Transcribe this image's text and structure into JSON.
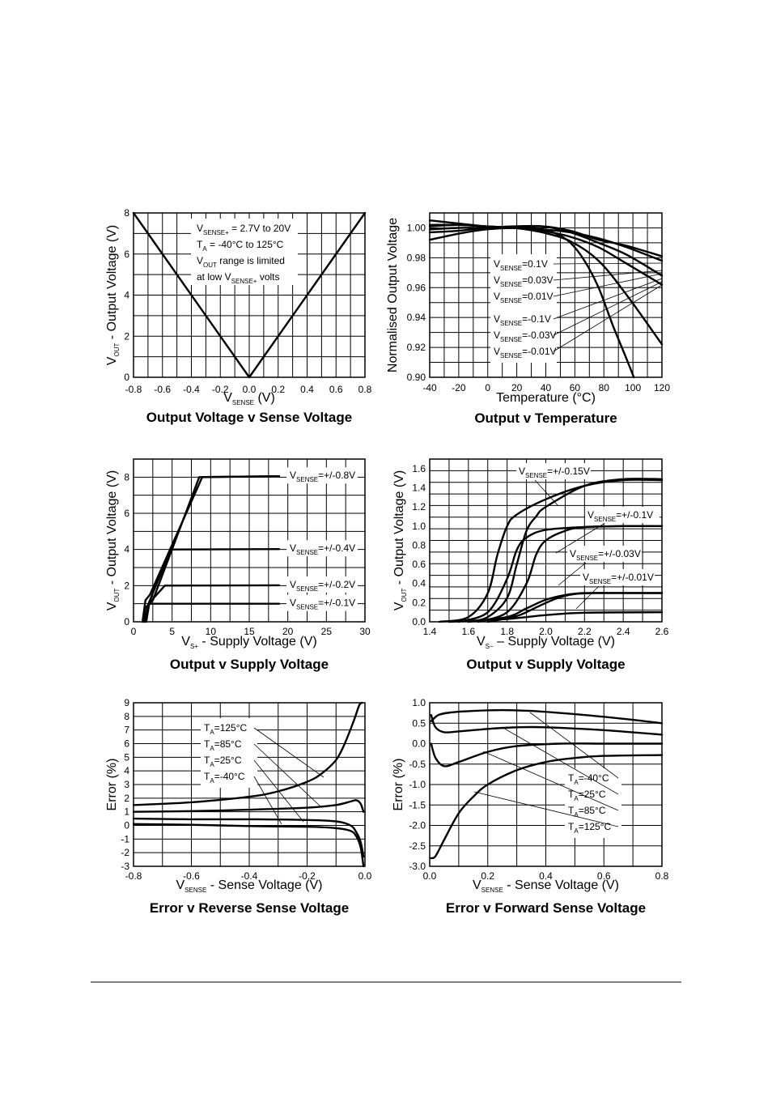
{
  "chart_data": [
    {
      "id": "c1",
      "type": "line",
      "title": "Output Voltage v Sense Voltage",
      "xlabel": {
        "main": "V",
        "sub": "SENSE",
        "rest": " (V)"
      },
      "ylabel": {
        "main": "V",
        "sub": "OUT",
        "rest": " - Output Voltage (V)"
      },
      "xlim": [
        -0.8,
        0.8
      ],
      "ylim": [
        0,
        8
      ],
      "x_ticks": [
        "-0.8",
        "-0.6",
        "-0.4",
        "-0.2",
        "0.0",
        "0.2",
        "0.4",
        "0.6",
        "0.8"
      ],
      "y_ticks": [
        "0",
        "2",
        "4",
        "6",
        "8"
      ],
      "notes": [
        [
          {
            "t": "V"
          },
          {
            "s": "SENSE+"
          },
          {
            "t": " = 2.7V to 20V"
          }
        ],
        [
          {
            "t": "T"
          },
          {
            "s": "A"
          },
          {
            "t": " = -40°C to 125°C"
          }
        ],
        [
          {
            "t": "V"
          },
          {
            "s": "OUT"
          },
          {
            "t": " range is limited"
          }
        ],
        [
          {
            "t": "at low V"
          },
          {
            "s": "SENSE+"
          },
          {
            "t": " volts"
          }
        ]
      ],
      "series": [
        {
          "x": [
            -0.8,
            0.0,
            0.8
          ],
          "y": [
            8,
            0,
            8
          ]
        }
      ]
    },
    {
      "id": "c2",
      "type": "line",
      "title": "Output v Temperature",
      "xlabel": {
        "main": "Temperature (°C)"
      },
      "ylabel": {
        "main": "Normalised Output Voltage"
      },
      "xlim": [
        -40,
        125
      ],
      "ylim": [
        0.9,
        1.01
      ],
      "x_ticks": [
        "-40",
        "-20",
        "0",
        "20",
        "40",
        "60",
        "80",
        "100",
        "120"
      ],
      "y_ticks": [
        "0.90",
        "0.92",
        "0.94",
        "0.96",
        "0.98",
        "1.00"
      ],
      "series": [
        {
          "name": "=0.1V",
          "sense": "SENSE",
          "x": [
            -40,
            -20,
            0,
            20,
            40,
            60,
            80,
            100,
            125
          ],
          "y": [
            1.001,
            1.002,
            1.001,
            1.0,
            0.999,
            0.997,
            0.993,
            0.987,
            0.978
          ]
        },
        {
          "name": "=0.03V",
          "sense": "SENSE",
          "x": [
            -40,
            -20,
            0,
            20,
            40,
            60,
            80,
            100,
            125
          ],
          "y": [
            1.002,
            1.002,
            1.001,
            1.0,
            0.998,
            0.994,
            0.987,
            0.976,
            0.962
          ]
        },
        {
          "name": "=0.01V",
          "sense": "SENSE",
          "x": [
            -40,
            -20,
            0,
            20,
            40,
            60,
            80,
            100,
            125
          ],
          "y": [
            1.005,
            1.003,
            1.001,
            1.0,
            0.997,
            0.991,
            0.978,
            0.955,
            0.922
          ]
        },
        {
          "name": "=-0.1V",
          "sense": "SENSE",
          "x": [
            -40,
            -20,
            0,
            20,
            40,
            60,
            80,
            100,
            125
          ],
          "y": [
            0.999,
            1.0,
            1.0,
            1.0,
            1.001,
            0.998,
            0.992,
            0.988,
            0.981
          ]
        },
        {
          "name": "=-0.03V",
          "sense": "SENSE",
          "x": [
            -40,
            -20,
            0,
            20,
            40,
            60,
            80,
            100,
            125
          ],
          "y": [
            0.997,
            0.998,
            1.0,
            1.001,
            1.001,
            0.997,
            0.99,
            0.982,
            0.968
          ]
        },
        {
          "name": "=-0.01V",
          "sense": "SENSE",
          "x": [
            -40,
            -20,
            0,
            20,
            40,
            50,
            60,
            70,
            80,
            90,
            100,
            105
          ],
          "y": [
            0.992,
            0.996,
            0.999,
            1.0,
            0.999,
            0.996,
            0.99,
            0.978,
            0.96,
            0.935,
            0.912,
            0.9
          ]
        }
      ]
    },
    {
      "id": "c3",
      "type": "line",
      "title": "Output v Supply Voltage",
      "xlabel": {
        "main": "V",
        "sub": "S+",
        "rest": " - Supply Voltage (V)"
      },
      "ylabel": {
        "main": "V",
        "sub": "OUT",
        "rest": " - Output Voltage (V)"
      },
      "xlim": [
        0,
        31
      ],
      "ylim": [
        0,
        9
      ],
      "x_ticks": [
        "0",
        "5",
        "10",
        "15",
        "20",
        "25",
        "30"
      ],
      "y_ticks": [
        "0",
        "2",
        "4",
        "6",
        "8"
      ],
      "series": [
        {
          "name": "=+/-0.8V",
          "sense": "SENSE",
          "x": [
            1.2,
            1.6,
            2.2,
            9.2,
            19.5
          ],
          "y": [
            0,
            1.2,
            1.5,
            8.0,
            8.05
          ]
        },
        {
          "name": "=+/-0.8V",
          "sense": "SENSE",
          "x": [
            1.7,
            2.1,
            2.6,
            8.8,
            19.5
          ],
          "y": [
            0,
            1.0,
            1.2,
            8.0,
            8.05
          ]
        },
        {
          "name": "=+/-0.4V",
          "sense": "SENSE",
          "x": [
            1.6,
            2.0,
            5.0,
            19.5
          ],
          "y": [
            0,
            1.0,
            4.0,
            4.02
          ]
        },
        {
          "name": "=+/-0.2V",
          "sense": "SENSE",
          "x": [
            1.5,
            2.0,
            4.2,
            19.5
          ],
          "y": [
            0,
            1.0,
            2.0,
            2.02
          ]
        },
        {
          "name": "=+/-0.1V",
          "sense": "SENSE",
          "x": [
            1.3,
            1.6,
            2.2,
            19.5
          ],
          "y": [
            0,
            0.8,
            1.0,
            1.0
          ]
        }
      ],
      "labels": [
        {
          "name": "=+/-0.8V",
          "sense": "SENSE",
          "y": 8.05
        },
        {
          "name": "=+/-0.4V",
          "sense": "SENSE",
          "y": 4.02
        },
        {
          "name": "=+/-0.2V",
          "sense": "SENSE",
          "y": 2.02
        },
        {
          "name": "=+/-0.1V",
          "sense": "SENSE",
          "y": 1.0
        }
      ]
    },
    {
      "id": "c4",
      "type": "line",
      "title": "Output v Supply Voltage",
      "xlabel": {
        "main": "V",
        "sub": "S−",
        "rest": " – Supply Voltage (V)"
      },
      "ylabel": {
        "main": "V",
        "sub": "OUT",
        "rest": " - Output Voltage (V)"
      },
      "xlim": [
        1.4,
        2.6
      ],
      "ylim": [
        0,
        1.7
      ],
      "x_ticks": [
        "1.4",
        "1.6",
        "1.8",
        "2.0",
        "2.2",
        "2.4",
        "2.6"
      ],
      "y_ticks": [
        "0.0",
        "0.2",
        "0.4",
        "0.6",
        "0.8",
        "1.0",
        "1.2",
        "1.4",
        "1.6"
      ],
      "series": [
        {
          "name": "=+/-0.15V",
          "sense": "SENSE",
          "x": [
            1.45,
            1.6,
            1.7,
            1.75,
            1.8,
            1.85,
            2.0,
            2.2,
            2.4,
            2.6
          ],
          "y": [
            0.0,
            0.05,
            0.3,
            0.7,
            1.0,
            1.12,
            1.28,
            1.42,
            1.48,
            1.48
          ]
        },
        {
          "name": "=+/-0.15V",
          "sense": "SENSE",
          "x": [
            1.6,
            1.7,
            1.8,
            1.85,
            1.9,
            1.95,
            2.0,
            2.2,
            2.4,
            2.6
          ],
          "y": [
            0.0,
            0.05,
            0.25,
            0.6,
            0.95,
            1.1,
            1.2,
            1.42,
            1.49,
            1.49
          ]
        },
        {
          "name": "=+/-0.1V",
          "sense": "SENSE",
          "x": [
            1.55,
            1.7,
            1.8,
            1.85,
            1.9,
            2.0,
            2.2,
            2.4,
            2.6
          ],
          "y": [
            0.0,
            0.1,
            0.45,
            0.75,
            0.88,
            0.96,
            0.99,
            1.0,
            1.0
          ]
        },
        {
          "name": "=+/-0.1V",
          "sense": "SENSE",
          "x": [
            1.65,
            1.8,
            1.9,
            1.95,
            2.0,
            2.1,
            2.2,
            2.4,
            2.6
          ],
          "y": [
            0.0,
            0.1,
            0.4,
            0.7,
            0.85,
            0.95,
            0.99,
            1.0,
            1.0
          ]
        },
        {
          "name": "=+/-0.03V",
          "sense": "SENSE",
          "x": [
            1.6,
            1.8,
            1.9,
            2.0,
            2.1,
            2.2,
            2.4,
            2.6
          ],
          "y": [
            0.0,
            0.05,
            0.14,
            0.23,
            0.28,
            0.3,
            0.3,
            0.3
          ]
        },
        {
          "name": "=+/-0.03V",
          "sense": "SENSE",
          "x": [
            1.7,
            1.85,
            1.95,
            2.05,
            2.15,
            2.3,
            2.6
          ],
          "y": [
            0.0,
            0.06,
            0.15,
            0.24,
            0.29,
            0.3,
            0.3
          ]
        },
        {
          "name": "=+/-0.01V",
          "sense": "SENSE",
          "x": [
            1.5,
            1.8,
            2.0,
            2.2,
            2.6
          ],
          "y": [
            0.0,
            0.03,
            0.07,
            0.095,
            0.1
          ]
        }
      ],
      "labels": [
        {
          "name": "=+/-0.15V",
          "sense": "SENSE"
        },
        {
          "name": "=+/-0.1V",
          "sense": "SENSE"
        },
        {
          "name": "=+/-0.03V",
          "sense": "SENSE"
        },
        {
          "name": "=+/-0.01V",
          "sense": "SENSE"
        }
      ]
    },
    {
      "id": "c5",
      "type": "line",
      "title": "Error v Reverse Sense Voltage",
      "xlabel": {
        "main": "V",
        "sub": "SENSE",
        "rest": " - Sense Voltage (V)"
      },
      "ylabel": {
        "main": "Error (%)"
      },
      "xlim": [
        -0.8,
        0.0
      ],
      "ylim": [
        -3,
        9
      ],
      "x_ticks": [
        "-0.8",
        "-0.6",
        "-0.4",
        "-0.2",
        "0.0"
      ],
      "y_ticks": [
        "-3",
        "-2",
        "-1",
        "0",
        "1",
        "2",
        "3",
        "4",
        "5",
        "6",
        "7",
        "8",
        "9"
      ],
      "series": [
        {
          "name": "=125°C",
          "sense": "A",
          "x": [
            -0.8,
            -0.6,
            -0.4,
            -0.3,
            -0.2,
            -0.15,
            -0.1,
            -0.07,
            -0.04,
            -0.02,
            -0.01
          ],
          "y": [
            1.5,
            1.7,
            2.1,
            2.5,
            3.2,
            3.8,
            4.8,
            6.0,
            7.6,
            8.8,
            9.0
          ]
        },
        {
          "name": "=85°C",
          "sense": "A",
          "x": [
            -0.8,
            -0.6,
            -0.4,
            -0.2,
            -0.1,
            -0.05,
            -0.03,
            -0.015,
            -0.005
          ],
          "y": [
            1.0,
            1.05,
            1.15,
            1.3,
            1.5,
            1.75,
            1.85,
            1.6,
            1.0
          ]
        },
        {
          "name": "=25°C",
          "sense": "A",
          "x": [
            -0.8,
            -0.6,
            -0.4,
            -0.2,
            -0.1,
            -0.05,
            -0.03,
            -0.015,
            -0.005
          ],
          "y": [
            0.5,
            0.45,
            0.45,
            0.4,
            0.3,
            0.0,
            -0.5,
            -1.2,
            -2.3
          ]
        },
        {
          "name": "=-40°C",
          "sense": "A",
          "x": [
            -0.8,
            -0.6,
            -0.4,
            -0.2,
            -0.1,
            -0.05,
            -0.03,
            -0.015,
            -0.005
          ],
          "y": [
            0.1,
            0.05,
            -0.05,
            -0.1,
            -0.2,
            -0.4,
            -0.8,
            -1.6,
            -3.0
          ]
        }
      ]
    },
    {
      "id": "c6",
      "type": "line",
      "title": "Error v Forward Sense Voltage",
      "xlabel": {
        "main": "V",
        "sub": "SENSE",
        "rest": " - Sense Voltage (V)"
      },
      "ylabel": {
        "main": "Error (%)"
      },
      "xlim": [
        0.0,
        0.8
      ],
      "ylim": [
        -3.0,
        1.0
      ],
      "x_ticks": [
        "0.0",
        "0.2",
        "0.4",
        "0.6",
        "0.8"
      ],
      "y_ticks": [
        "-3.0",
        "-2.5",
        "-2.0",
        "-1.5",
        "-1.0",
        "-0.5",
        "0.0",
        "0.5",
        "1.0"
      ],
      "series": [
        {
          "name": "=-40°C",
          "sense": "A",
          "x": [
            0.005,
            0.03,
            0.07,
            0.15,
            0.25,
            0.35,
            0.5,
            0.65,
            0.8
          ],
          "y": [
            0.55,
            0.7,
            0.76,
            0.8,
            0.82,
            0.8,
            0.72,
            0.62,
            0.5
          ]
        },
        {
          "name": "=25°C",
          "sense": "A",
          "x": [
            0.005,
            0.02,
            0.05,
            0.1,
            0.2,
            0.3,
            0.4,
            0.6,
            0.8
          ],
          "y": [
            0.7,
            0.4,
            0.28,
            0.3,
            0.36,
            0.4,
            0.4,
            0.33,
            0.22
          ]
        },
        {
          "name": "=85°C",
          "sense": "A",
          "x": [
            0.005,
            0.02,
            0.05,
            0.1,
            0.2,
            0.3,
            0.45,
            0.6,
            0.8
          ],
          "y": [
            0.0,
            -0.35,
            -0.55,
            -0.45,
            -0.2,
            -0.06,
            0.0,
            0.0,
            0.0
          ]
        },
        {
          "name": "=125°C",
          "sense": "A",
          "x": [
            0.005,
            0.02,
            0.05,
            0.1,
            0.15,
            0.2,
            0.3,
            0.4,
            0.5,
            0.6,
            0.8
          ],
          "y": [
            -2.8,
            -2.75,
            -2.35,
            -1.7,
            -1.3,
            -1.0,
            -0.65,
            -0.45,
            -0.35,
            -0.3,
            -0.28
          ]
        }
      ]
    }
  ]
}
